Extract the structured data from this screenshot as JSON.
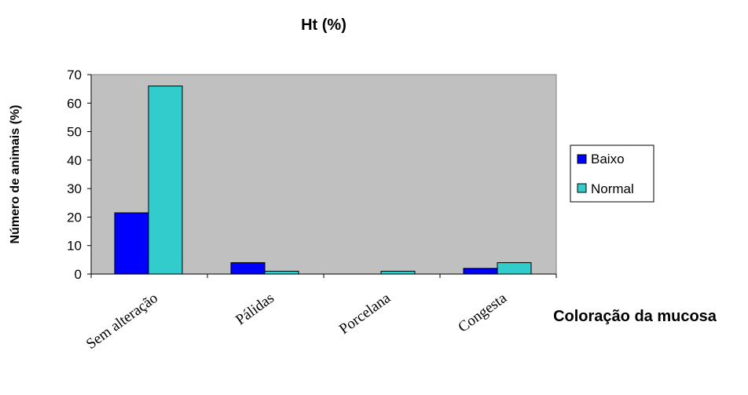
{
  "chart_data": {
    "type": "bar",
    "title": "Ht (%)",
    "xlabel": "Coloração da mucosa",
    "ylabel": "Número de animais (%)",
    "categories": [
      "Sem alteração",
      "Pálidas",
      "Porcelana",
      "Congesta"
    ],
    "series": [
      {
        "name": "Baixo",
        "color": "#0000ff",
        "values": [
          21.5,
          4,
          0,
          2
        ]
      },
      {
        "name": "Normal",
        "color": "#33cccc",
        "values": [
          66,
          1,
          1,
          4
        ]
      }
    ],
    "y_ticks": [
      "0",
      "10",
      "20",
      "30",
      "40",
      "50",
      "60",
      "70"
    ],
    "ylim": [
      0,
      70
    ],
    "plot_background": "#c0c0c0",
    "grid": false,
    "legend_position": "right"
  }
}
